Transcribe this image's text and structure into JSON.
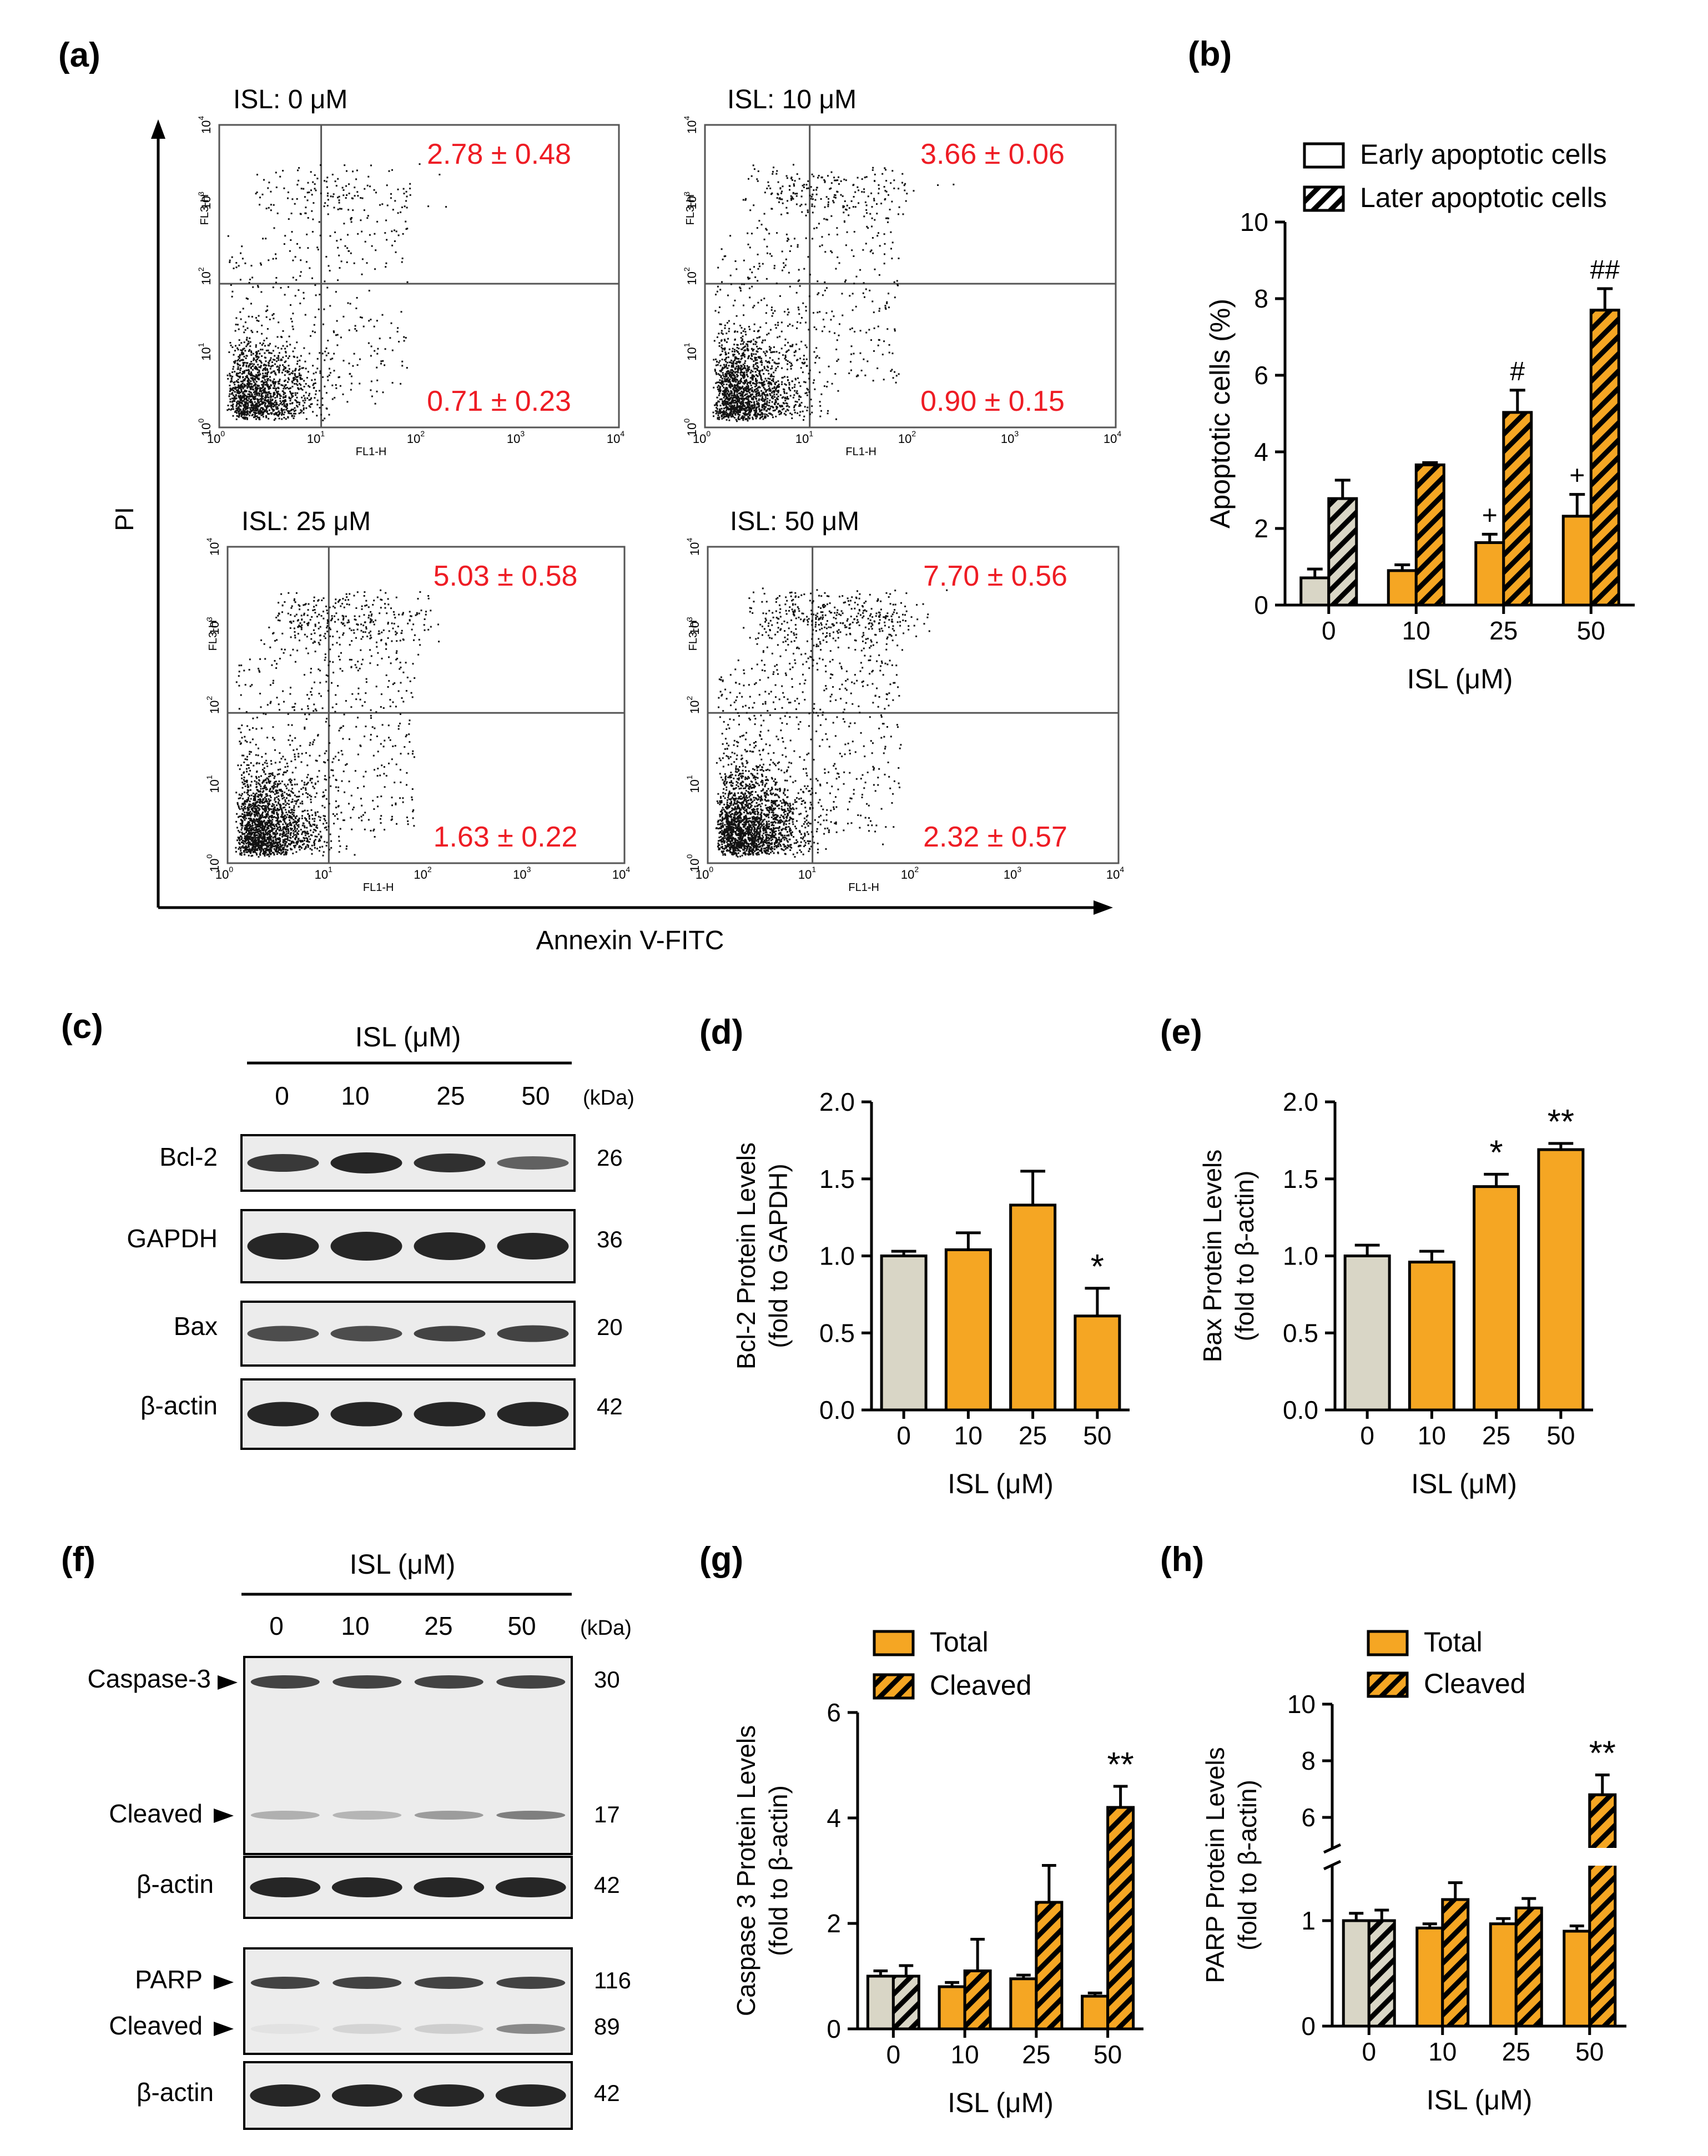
{
  "panel_labels": {
    "a": "(a)",
    "b": "(b)",
    "c": "(c)",
    "d": "(d)",
    "e": "(e)",
    "f": "(f)",
    "g": "(g)",
    "h": "(h)"
  },
  "colors": {
    "control": "#d9d6c6",
    "treated": "#f5a623",
    "red_text": "#ee1c24",
    "ink": "#000000",
    "blot_band": "#262626"
  },
  "flow": {
    "y_axis_label": "PI",
    "x_axis_label": "Annexin V-FITC",
    "plot_xlabel": "FL1-H",
    "plot_ylabel": "FL3-H",
    "tick_labels": [
      "10",
      "10",
      "10",
      "10",
      "10"
    ],
    "tick_exps": [
      "0",
      "1",
      "2",
      "3",
      "4"
    ],
    "plots": [
      {
        "title": "ISL: 0 μM",
        "upper": "2.78 ± 0.48",
        "lower": "0.71 ± 0.23"
      },
      {
        "title": "ISL: 10 μM",
        "upper": "3.66 ± 0.06",
        "lower": "0.90 ± 0.15"
      },
      {
        "title": "ISL: 25 μM",
        "upper": "5.03 ± 0.58",
        "lower": "1.63 ± 0.22"
      },
      {
        "title": "ISL: 50 μM",
        "upper": "7.70 ± 0.56",
        "lower": "2.32 ± 0.57"
      }
    ]
  },
  "blots": {
    "c": {
      "header": "ISL (μM)",
      "doses": [
        "0",
        "10",
        "25",
        "50"
      ],
      "kda_header": "(kDa)",
      "rows": [
        {
          "label": "Bcl-2",
          "kda": "26"
        },
        {
          "label": "GAPDH",
          "kda": "36"
        },
        {
          "label": "Bax",
          "kda": "20"
        },
        {
          "label": "β-actin",
          "kda": "42"
        }
      ]
    },
    "f": {
      "header": "ISL (μM)",
      "doses": [
        "0",
        "10",
        "25",
        "50"
      ],
      "kda_header": "(kDa)",
      "labels": [
        "Caspase-3",
        "Cleaved",
        "β-actin",
        "PARP",
        "Cleaved",
        "β-actin"
      ],
      "kdas": [
        "30",
        "17",
        "42",
        "116",
        "89",
        "42"
      ]
    }
  },
  "chart_data": [
    {
      "panel": "b",
      "type": "bar",
      "categories": [
        "0",
        "10",
        "25",
        "50"
      ],
      "series": [
        {
          "name": "Early apoptotic cells",
          "values": [
            0.71,
            0.9,
            1.63,
            2.32
          ],
          "errors": [
            0.23,
            0.15,
            0.22,
            0.57
          ],
          "annotations": [
            "",
            "",
            "+",
            "+"
          ]
        },
        {
          "name": "Later apoptotic cells",
          "values": [
            2.78,
            3.66,
            5.03,
            7.7
          ],
          "errors": [
            0.48,
            0.06,
            0.58,
            0.56
          ],
          "annotations": [
            "",
            "",
            "#",
            "##"
          ]
        }
      ],
      "xlabel": "ISL (μM)",
      "ylabel": "Apoptotic cells (%)",
      "ylim": [
        0,
        10
      ],
      "yticks": [
        "0",
        "2",
        "4",
        "6",
        "8",
        "10"
      ],
      "legend": "top"
    },
    {
      "panel": "d",
      "type": "bar",
      "categories": [
        "0",
        "10",
        "25",
        "50"
      ],
      "series": [
        {
          "values": [
            1.0,
            1.04,
            1.33,
            0.61
          ],
          "errors": [
            0.03,
            0.11,
            0.22,
            0.18
          ],
          "annotations": [
            "",
            "",
            "",
            "*"
          ]
        }
      ],
      "xlabel": "ISL (μM)",
      "ylabel_lines": [
        "Bcl-2 Protein Levels",
        "(fold to GAPDH)"
      ],
      "ylim": [
        0,
        2.0
      ],
      "yticks": [
        "0.0",
        "0.5",
        "1.0",
        "1.5",
        "2.0"
      ]
    },
    {
      "panel": "e",
      "type": "bar",
      "categories": [
        "0",
        "10",
        "25",
        "50"
      ],
      "series": [
        {
          "values": [
            1.0,
            0.96,
            1.45,
            1.69
          ],
          "errors": [
            0.07,
            0.07,
            0.08,
            0.04
          ],
          "annotations": [
            "",
            "",
            "*",
            "**"
          ]
        }
      ],
      "xlabel": "ISL (μM)",
      "ylabel_lines": [
        "Bax Protein Levels",
        "(fold to β-actin)"
      ],
      "ylim": [
        0,
        2.0
      ],
      "yticks": [
        "0.0",
        "0.5",
        "1.0",
        "1.5",
        "2.0"
      ]
    },
    {
      "panel": "g",
      "type": "bar",
      "categories": [
        "0",
        "10",
        "25",
        "50"
      ],
      "series": [
        {
          "name": "Total",
          "values": [
            1.0,
            0.8,
            0.95,
            0.62
          ],
          "errors": [
            0.1,
            0.08,
            0.07,
            0.06
          ],
          "annotations": [
            "",
            "",
            "",
            ""
          ]
        },
        {
          "name": "Cleaved",
          "values": [
            1.0,
            1.1,
            2.4,
            4.2
          ],
          "errors": [
            0.2,
            0.6,
            0.7,
            0.4
          ],
          "annotations": [
            "",
            "",
            "",
            "**"
          ]
        }
      ],
      "xlabel": "ISL (μM)",
      "ylabel_lines": [
        "Caspase 3 Protein Levels",
        "(fold to β-actin)"
      ],
      "ylim": [
        0,
        6
      ],
      "yticks": [
        "0",
        "2",
        "4",
        "6"
      ],
      "legend": "top"
    },
    {
      "panel": "h",
      "type": "bar",
      "categories": [
        "0",
        "10",
        "25",
        "50"
      ],
      "series": [
        {
          "name": "Total",
          "values": [
            1.0,
            0.93,
            0.97,
            0.9
          ],
          "errors": [
            0.07,
            0.04,
            0.05,
            0.05
          ],
          "annotations": [
            "",
            "",
            "",
            ""
          ]
        },
        {
          "name": "Cleaved",
          "values": [
            1.0,
            1.2,
            1.12,
            6.8
          ],
          "errors": [
            0.1,
            0.16,
            0.09,
            0.7
          ],
          "annotations": [
            "",
            "",
            "",
            "**"
          ]
        }
      ],
      "xlabel": "ISL (μM)",
      "ylabel_lines": [
        "PARP Protein Levels",
        "(fold to β-actin)"
      ],
      "axis_break": true,
      "ylim": [
        0,
        10
      ],
      "yticks": [
        "0",
        "1",
        "6",
        "8",
        "10"
      ],
      "legend": "top"
    }
  ]
}
